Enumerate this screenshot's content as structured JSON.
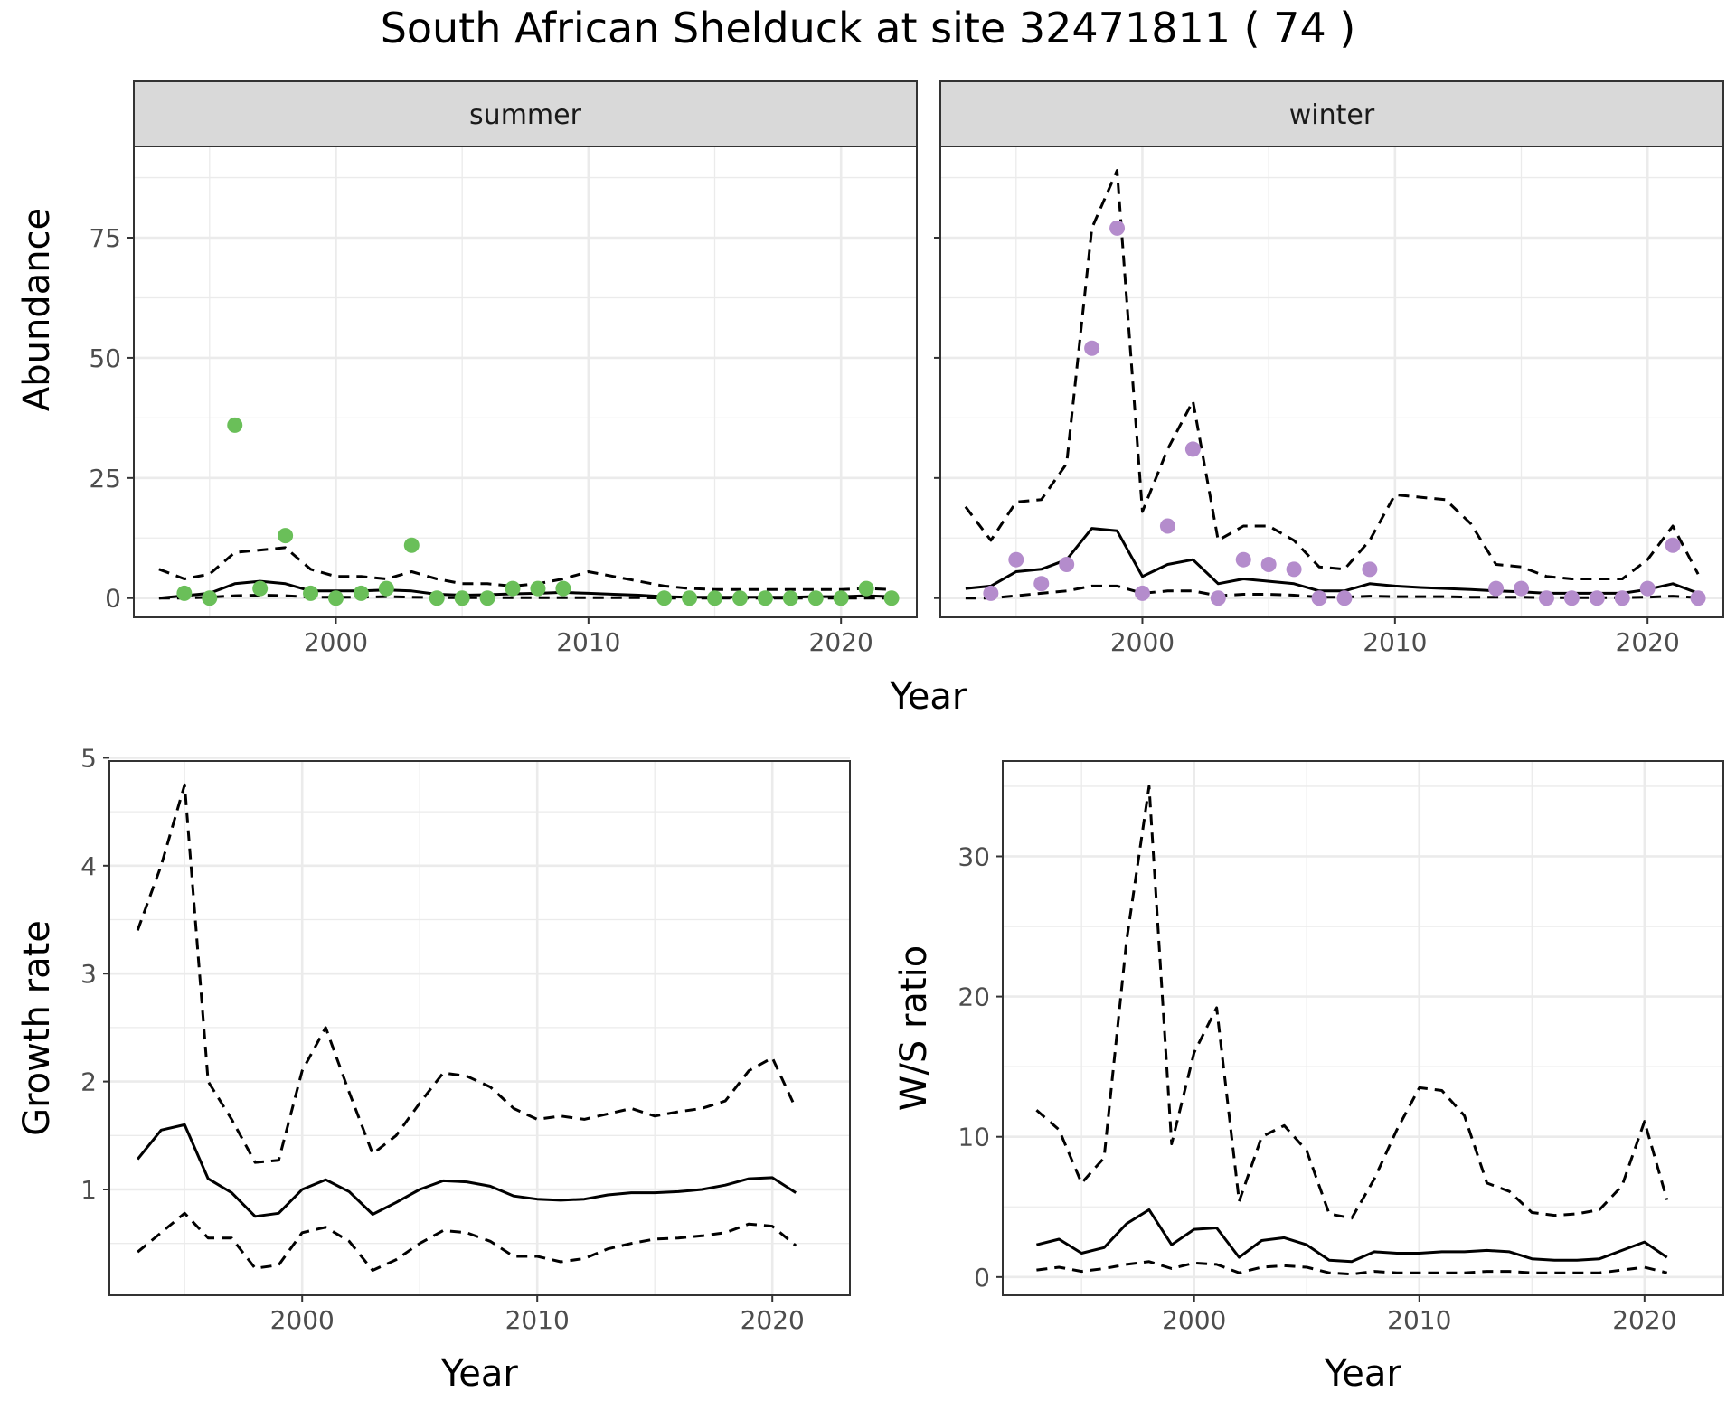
{
  "title": "South African Shelduck at site 32471811 ( 74 )",
  "colors": {
    "summer_points": "#6abf59",
    "winter_points": "#b48ccc",
    "line": "#000000",
    "grid": "#ebebeb",
    "strip_bg": "#d9d9d9"
  },
  "chart_data": [
    {
      "type": "scatter",
      "panel": "summer",
      "strip_label": "summer",
      "xlabel": "Year",
      "ylabel": "Abundance",
      "xlim": [
        1992,
        2023
      ],
      "ylim": [
        -4,
        94
      ],
      "x_ticks": [
        2000,
        2010,
        2020
      ],
      "x_tick_labels": [
        "2000",
        "2010",
        "2020"
      ],
      "y_ticks": [
        0,
        25,
        50,
        75
      ],
      "y_tick_labels": [
        "0",
        "25",
        "50",
        "75"
      ],
      "points": {
        "x": [
          1994,
          1995,
          1996,
          1997,
          1998,
          1999,
          2000,
          2001,
          2002,
          2003,
          2004,
          2005,
          2006,
          2007,
          2008,
          2009,
          2013,
          2014,
          2015,
          2016,
          2017,
          2018,
          2019,
          2020,
          2021,
          2022
        ],
        "y": [
          1,
          0,
          36,
          2,
          13,
          1,
          0,
          1,
          2,
          11,
          0,
          0,
          0,
          2,
          2,
          2,
          0,
          0,
          0,
          0,
          0,
          0,
          0,
          0,
          2,
          0
        ]
      },
      "series": [
        {
          "style": "solid",
          "x": [
            1993,
            1994,
            1995,
            1996,
            1997,
            1998,
            1999,
            2000,
            2001,
            2002,
            2003,
            2004,
            2005,
            2006,
            2007,
            2008,
            2009,
            2010,
            2011,
            2012,
            2013,
            2014,
            2015,
            2016,
            2017,
            2018,
            2019,
            2020,
            2021,
            2022
          ],
          "values": [
            0,
            0.5,
            1,
            3,
            3.5,
            3,
            1.5,
            1.5,
            1.5,
            1.7,
            1.5,
            0.8,
            0.6,
            0.7,
            0.9,
            1,
            1.2,
            1,
            0.8,
            0.6,
            0.3,
            0.2,
            0.2,
            0.2,
            0.2,
            0.2,
            0.3,
            0.3,
            0.5,
            0.3
          ]
        },
        {
          "style": "dashed",
          "x": [
            1993,
            1994,
            1995,
            1996,
            1997,
            1998,
            1999,
            2000,
            2001,
            2002,
            2003,
            2004,
            2005,
            2006,
            2007,
            2008,
            2009,
            2010,
            2011,
            2012,
            2013,
            2014,
            2015,
            2016,
            2017,
            2018,
            2019,
            2020,
            2021,
            2022
          ],
          "values": [
            6,
            4,
            5,
            9.5,
            10,
            10.5,
            6,
            4.5,
            4.5,
            4,
            5.5,
            4,
            3,
            3,
            2.5,
            3,
            4,
            5.5,
            4.5,
            3.5,
            2.5,
            2,
            1.8,
            1.8,
            1.8,
            1.8,
            1.8,
            1.8,
            2,
            1.8
          ]
        },
        {
          "style": "dashed",
          "x": [
            1993,
            1994,
            1995,
            1996,
            1997,
            1998,
            1999,
            2000,
            2001,
            2002,
            2003,
            2004,
            2005,
            2006,
            2007,
            2008,
            2009,
            2010,
            2011,
            2012,
            2013,
            2014,
            2015,
            2016,
            2017,
            2018,
            2019,
            2020,
            2021,
            2022
          ],
          "values": [
            0,
            0,
            0.2,
            0.5,
            0.6,
            0.5,
            0.2,
            0.2,
            0.2,
            0.3,
            0.2,
            0.1,
            0.1,
            0.1,
            0.1,
            0.1,
            0.1,
            0.1,
            0.1,
            0.1,
            0,
            0,
            0,
            0,
            0,
            0,
            0,
            0,
            0,
            0
          ]
        }
      ]
    },
    {
      "type": "scatter",
      "panel": "winter",
      "strip_label": "winter",
      "xlabel": "Year",
      "ylabel": "Abundance",
      "xlim": [
        1992,
        2023
      ],
      "ylim": [
        -4,
        94
      ],
      "x_ticks": [
        2000,
        2010,
        2020
      ],
      "x_tick_labels": [
        "2000",
        "2010",
        "2020"
      ],
      "y_ticks": [
        0,
        25,
        50,
        75
      ],
      "points": {
        "x": [
          1994,
          1995,
          1996,
          1997,
          1998,
          1999,
          2000,
          2001,
          2002,
          2003,
          2004,
          2005,
          2006,
          2007,
          2008,
          2009,
          2014,
          2015,
          2016,
          2017,
          2018,
          2019,
          2020,
          2021,
          2022
        ],
        "y": [
          1,
          8,
          3,
          7,
          52,
          77,
          1,
          15,
          31,
          0,
          8,
          7,
          6,
          0,
          0,
          6,
          2,
          2,
          0,
          0,
          0,
          0,
          2,
          11,
          0
        ]
      },
      "series": [
        {
          "style": "solid",
          "x": [
            1993,
            1994,
            1995,
            1996,
            1997,
            1998,
            1999,
            2000,
            2001,
            2002,
            2003,
            2004,
            2005,
            2006,
            2007,
            2008,
            2009,
            2010,
            2011,
            2012,
            2013,
            2014,
            2015,
            2016,
            2017,
            2018,
            2019,
            2020,
            2021,
            2022
          ],
          "values": [
            2,
            2.5,
            5.5,
            6,
            8,
            14.5,
            14,
            4.5,
            7,
            8,
            3,
            4,
            3.5,
            3,
            1.5,
            1.5,
            3,
            2.5,
            2.2,
            2,
            1.8,
            1.5,
            1.3,
            1,
            1,
            1,
            1,
            1.8,
            3,
            1
          ]
        },
        {
          "style": "dashed",
          "x": [
            1993,
            1994,
            1995,
            1996,
            1997,
            1998,
            1999,
            2000,
            2001,
            2002,
            2003,
            2004,
            2005,
            2006,
            2007,
            2008,
            2009,
            2010,
            2011,
            2012,
            2013,
            2014,
            2015,
            2016,
            2017,
            2018,
            2019,
            2020,
            2021,
            2022
          ],
          "values": [
            19,
            12,
            20,
            20.5,
            28,
            77,
            89,
            18,
            31,
            41,
            12,
            15,
            15,
            12,
            6.5,
            6,
            12,
            21.5,
            21,
            20.5,
            15.5,
            7,
            6.5,
            4.5,
            4,
            4,
            4,
            8,
            15,
            5
          ]
        },
        {
          "style": "dashed",
          "x": [
            1993,
            1994,
            1995,
            1996,
            1997,
            1998,
            1999,
            2000,
            2001,
            2002,
            2003,
            2004,
            2005,
            2006,
            2007,
            2008,
            2009,
            2010,
            2011,
            2012,
            2013,
            2014,
            2015,
            2016,
            2017,
            2018,
            2019,
            2020,
            2021,
            2022
          ],
          "values": [
            0,
            0,
            0.5,
            1,
            1.5,
            2.5,
            2.5,
            1,
            1.5,
            1.5,
            0.5,
            0.8,
            0.8,
            0.6,
            0.2,
            0.2,
            0.4,
            0.3,
            0.3,
            0.3,
            0.2,
            0.2,
            0.2,
            0.1,
            0.1,
            0.1,
            0.1,
            0.2,
            0.4,
            0.1
          ]
        }
      ]
    },
    {
      "type": "line",
      "panel": "growth",
      "xlabel": "Year",
      "ylabel": "Growth rate",
      "xlim": [
        1991.8,
        2023.3
      ],
      "ylim": [
        0.02,
        4.97
      ],
      "x_ticks": [
        2000,
        2010,
        2020
      ],
      "x_tick_labels": [
        "2000",
        "2010",
        "2020"
      ],
      "y_ticks": [
        1,
        2,
        3,
        4,
        5
      ],
      "y_tick_labels": [
        "1",
        "2",
        "3",
        "4",
        "5"
      ],
      "series": [
        {
          "style": "solid",
          "x": [
            1993,
            1994,
            1995,
            1996,
            1997,
            1998,
            1999,
            2000,
            2001,
            2002,
            2003,
            2004,
            2005,
            2006,
            2007,
            2008,
            2009,
            2010,
            2011,
            2012,
            2013,
            2014,
            2015,
            2016,
            2017,
            2018,
            2019,
            2020,
            2021
          ],
          "values": [
            1.28,
            1.55,
            1.6,
            1.1,
            0.97,
            0.75,
            0.78,
            1.0,
            1.09,
            0.98,
            0.77,
            0.88,
            1.0,
            1.08,
            1.07,
            1.03,
            0.94,
            0.91,
            0.9,
            0.91,
            0.95,
            0.97,
            0.97,
            0.98,
            1.0,
            1.04,
            1.1,
            1.11,
            0.97
          ]
        },
        {
          "style": "dashed",
          "x": [
            1993,
            1994,
            1995,
            1996,
            1997,
            1998,
            1999,
            2000,
            2001,
            2002,
            2003,
            2004,
            2005,
            2006,
            2007,
            2008,
            2009,
            2010,
            2011,
            2012,
            2013,
            2014,
            2015,
            2016,
            2017,
            2018,
            2019,
            2020,
            2021
          ],
          "values": [
            3.4,
            4.0,
            4.75,
            2.0,
            1.65,
            1.25,
            1.27,
            2.1,
            2.5,
            1.9,
            1.33,
            1.5,
            1.8,
            2.08,
            2.05,
            1.95,
            1.75,
            1.65,
            1.68,
            1.65,
            1.7,
            1.75,
            1.68,
            1.72,
            1.75,
            1.82,
            2.1,
            2.22,
            1.75
          ]
        },
        {
          "style": "dashed",
          "x": [
            1993,
            1994,
            1995,
            1996,
            1997,
            1998,
            1999,
            2000,
            2001,
            2002,
            2003,
            2004,
            2005,
            2006,
            2007,
            2008,
            2009,
            2010,
            2011,
            2012,
            2013,
            2014,
            2015,
            2016,
            2017,
            2018,
            2019,
            2020,
            2021
          ],
          "values": [
            0.42,
            0.6,
            0.78,
            0.55,
            0.55,
            0.27,
            0.3,
            0.6,
            0.65,
            0.52,
            0.25,
            0.35,
            0.5,
            0.62,
            0.6,
            0.52,
            0.38,
            0.38,
            0.33,
            0.36,
            0.45,
            0.5,
            0.54,
            0.55,
            0.57,
            0.6,
            0.68,
            0.66,
            0.48
          ]
        }
      ]
    },
    {
      "type": "line",
      "panel": "ws_ratio",
      "xlabel": "Year",
      "ylabel": "W/S ratio",
      "xlim": [
        1991.5,
        2023.5
      ],
      "ylim": [
        -1.3,
        36.8
      ],
      "x_ticks": [
        2000,
        2010,
        2020
      ],
      "x_tick_labels": [
        "2000",
        "2010",
        "2020"
      ],
      "y_ticks": [
        0,
        10,
        20,
        30
      ],
      "y_tick_labels": [
        "0",
        "10",
        "20",
        "30"
      ],
      "series": [
        {
          "style": "solid",
          "x": [
            1993,
            1994,
            1995,
            1996,
            1997,
            1998,
            1999,
            2000,
            2001,
            2002,
            2003,
            2004,
            2005,
            2006,
            2007,
            2008,
            2009,
            2010,
            2011,
            2012,
            2013,
            2014,
            2015,
            2016,
            2017,
            2018,
            2019,
            2020,
            2021
          ],
          "values": [
            2.3,
            2.7,
            1.7,
            2.1,
            3.8,
            4.8,
            2.3,
            3.4,
            3.5,
            1.4,
            2.6,
            2.8,
            2.3,
            1.2,
            1.1,
            1.8,
            1.7,
            1.7,
            1.8,
            1.8,
            1.9,
            1.8,
            1.3,
            1.2,
            1.2,
            1.3,
            1.9,
            2.5,
            1.4
          ]
        },
        {
          "style": "dashed",
          "x": [
            1993,
            1994,
            1995,
            1996,
            1997,
            1998,
            1999,
            2000,
            2001,
            2002,
            2003,
            2004,
            2005,
            2006,
            2007,
            2008,
            2009,
            2010,
            2011,
            2012,
            2013,
            2014,
            2015,
            2016,
            2017,
            2018,
            2019,
            2020,
            2021
          ],
          "values": [
            11.9,
            10.5,
            6.7,
            8.5,
            24.0,
            35.0,
            9.5,
            16.0,
            19.2,
            5.4,
            10.0,
            10.8,
            9.0,
            4.5,
            4.2,
            7.0,
            10.5,
            13.5,
            13.3,
            11.5,
            6.7,
            6.1,
            4.6,
            4.4,
            4.5,
            4.8,
            6.5,
            11.1,
            5.5
          ]
        },
        {
          "style": "dashed",
          "x": [
            1993,
            1994,
            1995,
            1996,
            1997,
            1998,
            1999,
            2000,
            2001,
            2002,
            2003,
            2004,
            2005,
            2006,
            2007,
            2008,
            2009,
            2010,
            2011,
            2012,
            2013,
            2014,
            2015,
            2016,
            2017,
            2018,
            2019,
            2020,
            2021
          ],
          "values": [
            0.5,
            0.7,
            0.4,
            0.6,
            0.9,
            1.1,
            0.6,
            1.0,
            0.9,
            0.3,
            0.7,
            0.8,
            0.7,
            0.3,
            0.2,
            0.4,
            0.3,
            0.3,
            0.3,
            0.3,
            0.4,
            0.4,
            0.3,
            0.3,
            0.3,
            0.3,
            0.5,
            0.7,
            0.3
          ]
        }
      ]
    }
  ]
}
